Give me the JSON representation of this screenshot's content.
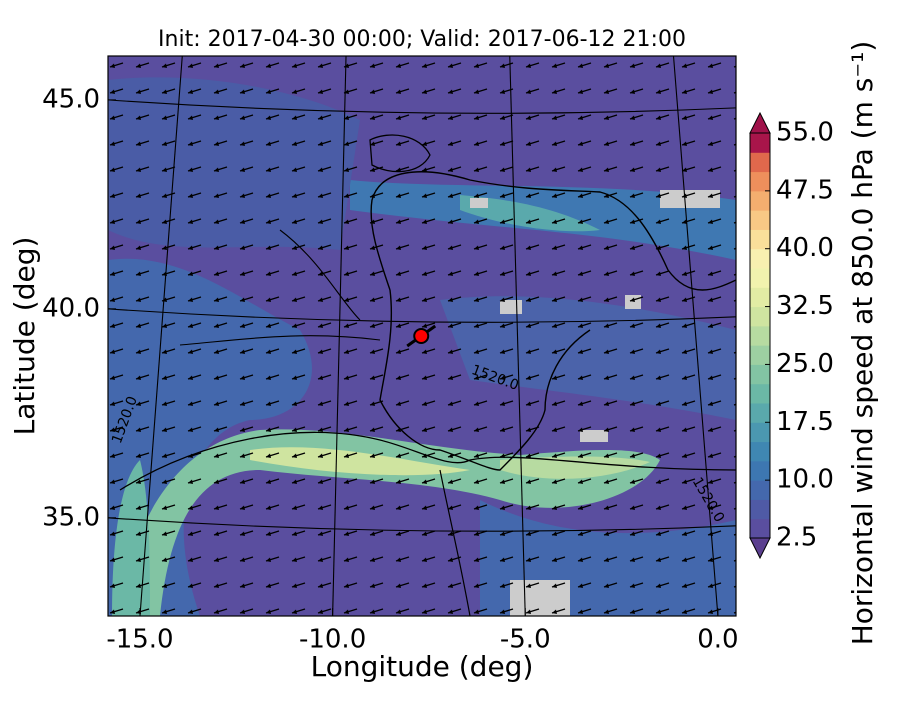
{
  "chart_data": {
    "type": "map",
    "title": "Init: 2017-04-30 00:00; Valid: 2017-06-12 21:00",
    "x_label": "Longitude (deg)",
    "y_label": "Latitude (deg)",
    "xlim": [
      -15.83,
      0.47
    ],
    "ylim": [
      32.65,
      46.05
    ],
    "xticks": [
      {
        "value": -15,
        "label": "-15.0"
      },
      {
        "value": -10,
        "label": "-10.0"
      },
      {
        "value": -5,
        "label": "-5.0"
      },
      {
        "value": 0,
        "label": "0.0"
      }
    ],
    "yticks": [
      {
        "value": 35,
        "label": "35.0"
      },
      {
        "value": 40,
        "label": "40.0"
      },
      {
        "value": 45,
        "label": "45.0"
      }
    ],
    "contour_labels": [
      "1520.0",
      "1520.0",
      "1520.0"
    ],
    "marker": {
      "lon": -7.7,
      "lat": 39.35,
      "color": "#ff0000"
    },
    "colorbar": {
      "label": "Horizontal wind speed at 850.0 hPa (m s⁻¹)",
      "lim": [
        2.5,
        55
      ],
      "ticks": [
        2.5,
        {
          "value": 10,
          "label": "10.0"
        },
        17.5,
        {
          "value": 25,
          "label": "25.0"
        },
        32.5,
        {
          "value": 40,
          "label": "40.0"
        },
        47.5,
        {
          "value": 55,
          "label": "55.0"
        }
      ],
      "colors": [
        "#5a4e9f",
        "#4f5aa6",
        "#4468ad",
        "#3d77b1",
        "#3f87b2",
        "#4b98b0",
        "#5aa9ac",
        "#6bb8a6",
        "#82c4a3",
        "#9dd0a2",
        "#b7dba1",
        "#cfe4a0",
        "#e2eca4",
        "#f1f3ae",
        "#f8f0b0",
        "#f9df9a",
        "#f8c985",
        "#f4ae6f",
        "#ee8f5c",
        "#e0684c",
        "#a8154a"
      ],
      "under_color": "#5b3f8f",
      "over_color": "#a0124a"
    }
  }
}
